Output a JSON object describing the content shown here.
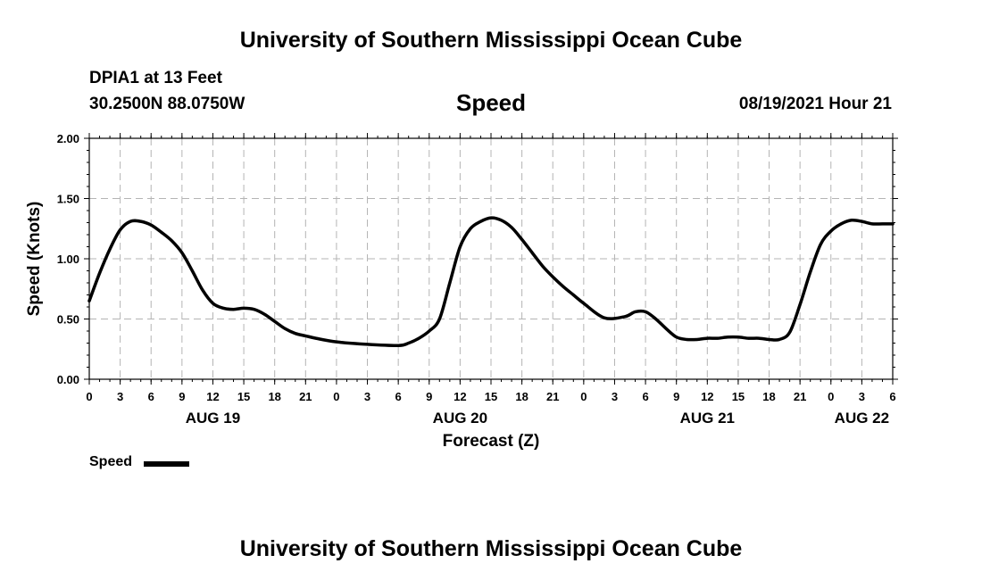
{
  "header": {
    "top_title": "University of Southern Mississippi Ocean Cube",
    "station": "DPIA1 at 13 Feet",
    "coords": "30.2500N  88.0750W",
    "chart_title": "Speed",
    "datetime": "08/19/2021 Hour 21",
    "bottom_title": "University of Southern Mississippi Ocean Cube"
  },
  "legend": {
    "label": "Speed"
  },
  "colors": {
    "line": "#000000",
    "grid": "#b4b4b4",
    "axis": "#000000"
  },
  "chart_data": {
    "type": "line",
    "title": "Speed",
    "xlabel": "Forecast (Z)",
    "ylabel": "Speed (Knots)",
    "ylim": [
      0,
      2
    ],
    "xlim": [
      0,
      78
    ],
    "x_unit": "hours from 00Z AUG 19",
    "yticks": [
      "0.00",
      "0.50",
      "1.00",
      "1.50",
      "2.00"
    ],
    "xtick_labels": [
      "0",
      "3",
      "6",
      "9",
      "12",
      "15",
      "18",
      "21",
      "0",
      "3",
      "6",
      "9",
      "12",
      "15",
      "18",
      "21",
      "0",
      "3",
      "6",
      "9",
      "12",
      "15",
      "18",
      "21",
      "0",
      "3",
      "6"
    ],
    "date_labels": [
      {
        "label": "AUG 19",
        "x": 12
      },
      {
        "label": "AUG 20",
        "x": 36
      },
      {
        "label": "AUG 21",
        "x": 60
      },
      {
        "label": "AUG 22",
        "x": 75
      }
    ],
    "grid": true,
    "series": [
      {
        "name": "Speed",
        "x": [
          0,
          1,
          2,
          3,
          4,
          5,
          6,
          7,
          8,
          9,
          10,
          11,
          12,
          13,
          14,
          15,
          16,
          17,
          18,
          19,
          20,
          21,
          22,
          24,
          27,
          30,
          31,
          32,
          33,
          34,
          35,
          36,
          37,
          38,
          39,
          40,
          41,
          42,
          43,
          44,
          45,
          46,
          47,
          48,
          50,
          52,
          53,
          54,
          55,
          56,
          57,
          58,
          59,
          60,
          61,
          62,
          63,
          64,
          65,
          66,
          67,
          68,
          69,
          70,
          71,
          72,
          73,
          74,
          75,
          76,
          77,
          78
        ],
        "values": [
          0.65,
          0.88,
          1.08,
          1.24,
          1.31,
          1.31,
          1.28,
          1.22,
          1.15,
          1.05,
          0.9,
          0.74,
          0.63,
          0.59,
          0.58,
          0.59,
          0.58,
          0.54,
          0.48,
          0.42,
          0.38,
          0.36,
          0.34,
          0.31,
          0.29,
          0.28,
          0.3,
          0.34,
          0.4,
          0.5,
          0.8,
          1.1,
          1.25,
          1.31,
          1.34,
          1.32,
          1.26,
          1.16,
          1.05,
          0.94,
          0.85,
          0.77,
          0.7,
          0.63,
          0.51,
          0.52,
          0.56,
          0.56,
          0.5,
          0.42,
          0.35,
          0.33,
          0.33,
          0.34,
          0.34,
          0.35,
          0.35,
          0.34,
          0.34,
          0.33,
          0.33,
          0.39,
          0.62,
          0.89,
          1.12,
          1.23,
          1.29,
          1.32,
          1.31,
          1.29,
          1.29,
          1.29
        ]
      }
    ]
  }
}
